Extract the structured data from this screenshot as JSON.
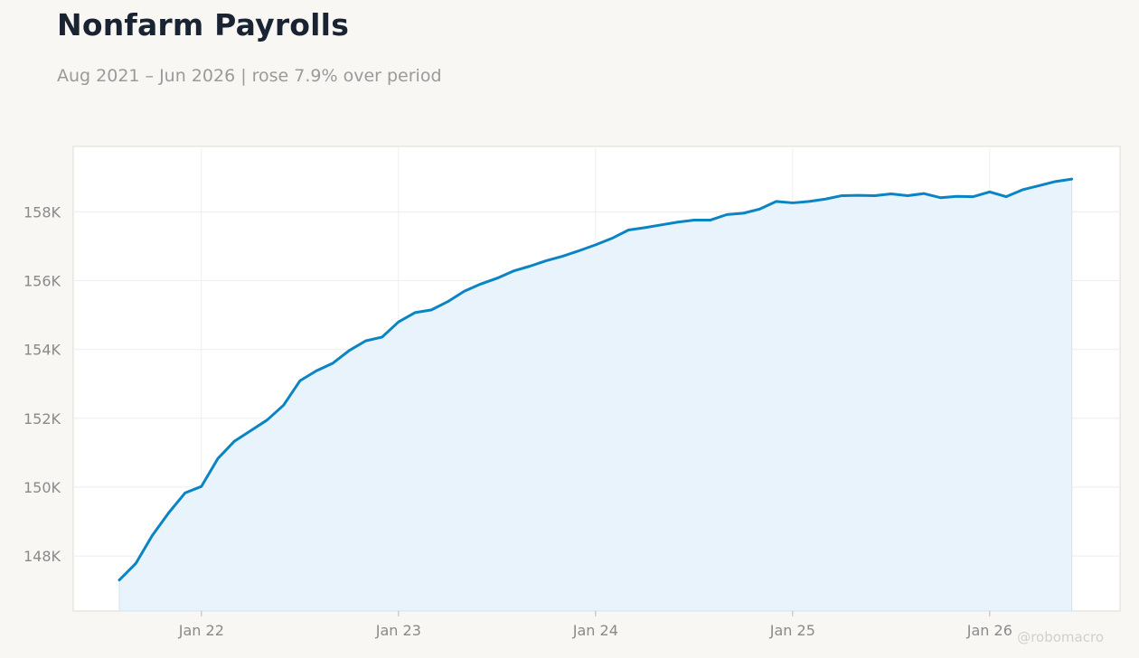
{
  "title": "Nonfarm Payrolls",
  "subtitle": "Aug 2021 – Jun 2026 | rose 7.9% over period",
  "watermark": "@robomacro",
  "colors": {
    "line": "#0b84c4",
    "area": "#e8f3fb",
    "background": "#f8f7f4",
    "plot_background": "#ffffff",
    "grid": "#eeeeee"
  },
  "chart_data": {
    "type": "area",
    "title": "Nonfarm Payrolls",
    "xlabel": "",
    "ylabel": "",
    "grid": true,
    "x_start": "2021-08",
    "x_end": "2026-06",
    "x_frequency": "monthly",
    "ylim": [
      146400,
      159900
    ],
    "y_ticks": [
      148000,
      150000,
      152000,
      154000,
      156000,
      158000
    ],
    "y_tick_labels": [
      "148K",
      "150K",
      "152K",
      "154K",
      "156K",
      "158K"
    ],
    "x_ticks": [
      "2022-01",
      "2023-01",
      "2024-01",
      "2025-01",
      "2026-01"
    ],
    "x_tick_labels": [
      "Jan 22",
      "Jan 23",
      "Jan 24",
      "Jan 25",
      "Jan 26"
    ],
    "series": [
      {
        "values": [
          147300,
          147780,
          148590,
          149250,
          149830,
          150020,
          150830,
          151330,
          151640,
          151950,
          152380,
          153090,
          153380,
          153600,
          153970,
          154250,
          154360,
          154800,
          155070,
          155150,
          155390,
          155690,
          155900,
          156070,
          156280,
          156420,
          156580,
          156710,
          156870,
          157040,
          157230,
          157470,
          157540,
          157620,
          157700,
          157760,
          157760,
          157920,
          157960,
          158080,
          158300,
          158260,
          158300,
          158370,
          158470,
          158480,
          158470,
          158520,
          158470,
          158530,
          158410,
          158450,
          158440,
          158580,
          158440,
          158640,
          158760,
          158880,
          158950
        ]
      }
    ]
  }
}
